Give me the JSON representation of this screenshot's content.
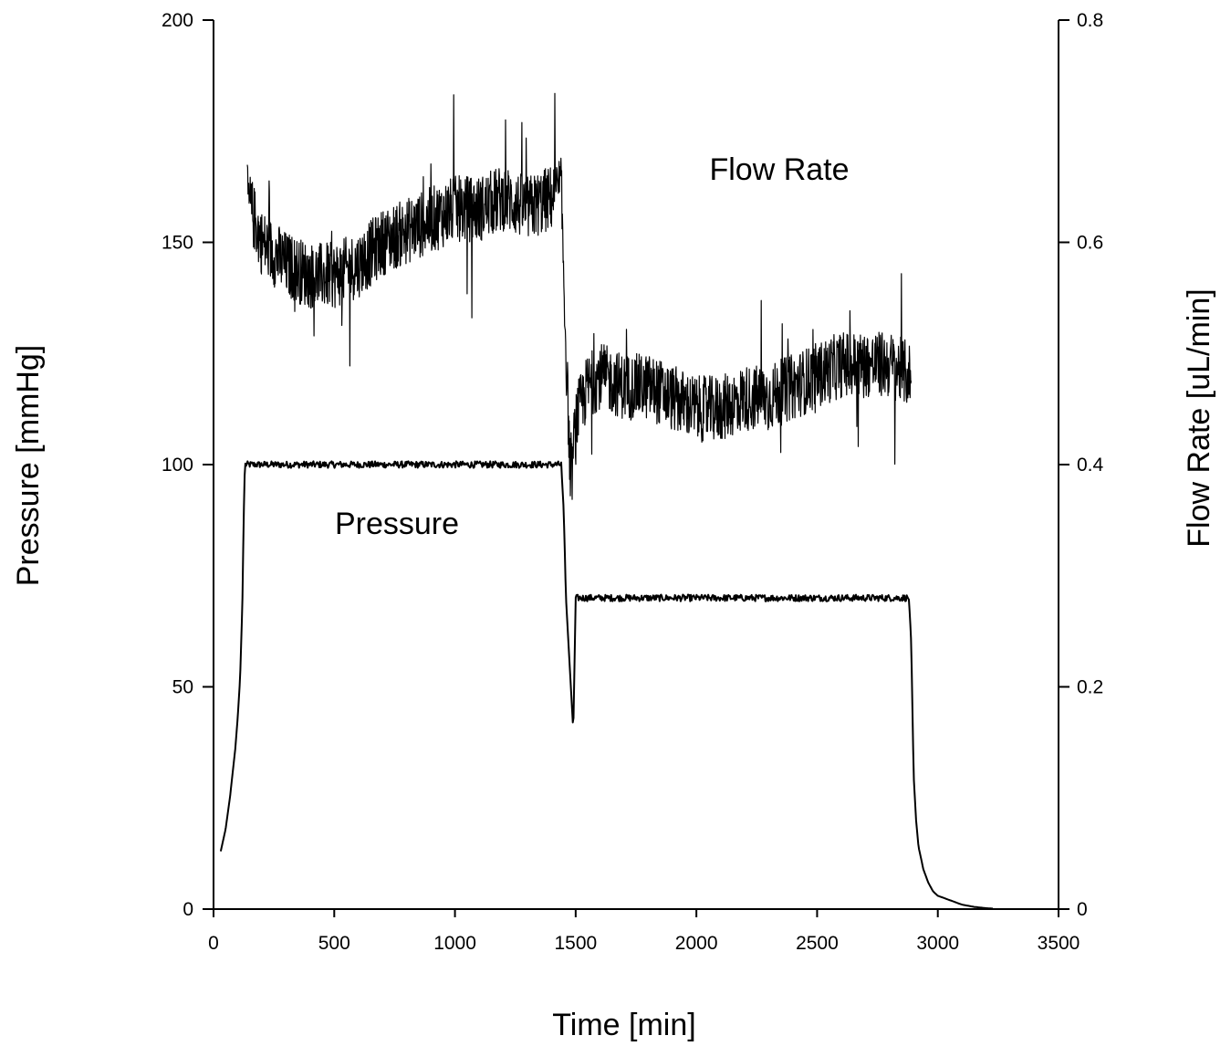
{
  "chart_data": {
    "type": "line",
    "xlabel": "Time [min]",
    "ylabel_left": "Pressure [mmHg]",
    "ylabel_right": "Flow Rate [uL/min]",
    "xlim": [
      0,
      3500
    ],
    "ylim_left": [
      0,
      200
    ],
    "ylim_right": [
      0,
      0.8
    ],
    "x_ticks": [
      "0",
      "500",
      "1000",
      "1500",
      "2000",
      "2500",
      "3000",
      "3500"
    ],
    "y_ticks_left": [
      "0",
      "50",
      "100",
      "150",
      "200"
    ],
    "y_ticks_right": [
      "0",
      "0.2",
      "0.4",
      "0.6",
      "0.8"
    ],
    "grid": false,
    "legend": "none",
    "annotations": [
      {
        "text": "Pressure",
        "x": 760,
        "y_left": 87
      },
      {
        "text": "Flow Rate",
        "x": 2340,
        "y_left": 167
      }
    ],
    "series": [
      {
        "name": "Pressure",
        "axis": "left",
        "style": "solid",
        "x": [
          30,
          50,
          70,
          90,
          100,
          110,
          120,
          125,
          130,
          140,
          200,
          400,
          600,
          800,
          1000,
          1200,
          1400,
          1440,
          1450,
          1460,
          1470,
          1480,
          1490,
          1500,
          1520,
          1600,
          1800,
          2000,
          2200,
          2400,
          2600,
          2800,
          2880,
          2890,
          2895,
          2900,
          2910,
          2920,
          2940,
          2960,
          2980,
          3000,
          3050,
          3100,
          3150,
          3200,
          3230
        ],
        "y": [
          13,
          18,
          26,
          36,
          43,
          52,
          70,
          88,
          100,
          100,
          100,
          100,
          100,
          100,
          100,
          100,
          100,
          100,
          90,
          70,
          60,
          50,
          40,
          70,
          70,
          70,
          70,
          70,
          70,
          70,
          70,
          70,
          70,
          60,
          45,
          30,
          20,
          14,
          9,
          6,
          4,
          3,
          2,
          1,
          0.5,
          0.2,
          0.1
        ],
        "noise": 1.5
      },
      {
        "name": "Flow Rate",
        "axis": "right",
        "style": "noisy",
        "x": [
          140,
          200,
          300,
          400,
          500,
          600,
          700,
          800,
          900,
          1000,
          1100,
          1200,
          1300,
          1400,
          1440,
          1460,
          1480,
          1500,
          1550,
          1600,
          1700,
          1800,
          1900,
          2000,
          2100,
          2200,
          2300,
          2400,
          2500,
          2600,
          2700,
          2800,
          2890
        ],
        "y": [
          0.64,
          0.6,
          0.58,
          0.57,
          0.57,
          0.58,
          0.6,
          0.61,
          0.62,
          0.63,
          0.63,
          0.64,
          0.63,
          0.64,
          0.65,
          0.5,
          0.38,
          0.44,
          0.47,
          0.48,
          0.47,
          0.47,
          0.46,
          0.45,
          0.45,
          0.46,
          0.46,
          0.47,
          0.48,
          0.49,
          0.49,
          0.49,
          0.48
        ],
        "noise": 0.03
      }
    ]
  }
}
